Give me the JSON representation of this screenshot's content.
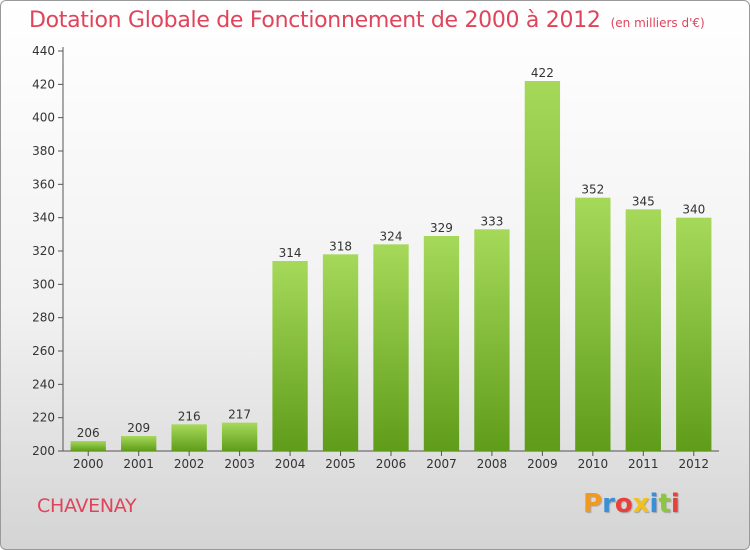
{
  "header": {
    "title": "Dotation Globale de Fonctionnement de 2000 à 2012",
    "subtitle": "(en milliers d'€)"
  },
  "footer": {
    "commune": "CHAVENAY",
    "logo_text": "Proxiti",
    "logo_colors": [
      "#f39a1e",
      "#3a8fd6",
      "#e8403a",
      "#f3c11e",
      "#3a8fd6",
      "#8cc63f",
      "#e8403a"
    ]
  },
  "colors": {
    "title": "#e0445a",
    "bar_top": "#a6d95a",
    "bar_bottom": "#5f9c1a"
  },
  "chart_data": {
    "type": "bar",
    "categories": [
      "2000",
      "2001",
      "2002",
      "2003",
      "2004",
      "2005",
      "2006",
      "2007",
      "2008",
      "2009",
      "2010",
      "2011",
      "2012"
    ],
    "values": [
      206,
      209,
      216,
      217,
      314,
      318,
      324,
      329,
      333,
      422,
      352,
      345,
      340
    ],
    "title": "Dotation Globale de Fonctionnement de 2000 à 2012",
    "subtitle": "(en milliers d'€)",
    "xlabel": "",
    "ylabel": "",
    "ylim": [
      200,
      440
    ],
    "yticks": [
      200,
      220,
      240,
      260,
      280,
      300,
      320,
      340,
      360,
      380,
      400,
      420,
      440
    ],
    "grid": false,
    "data_labels": true
  }
}
